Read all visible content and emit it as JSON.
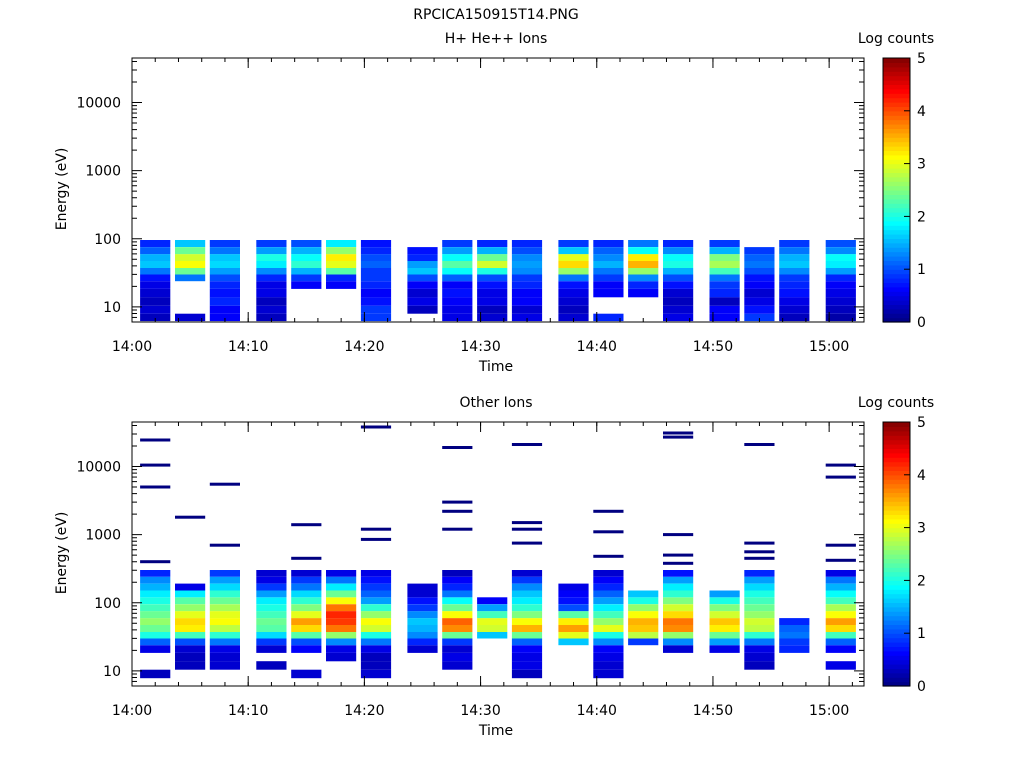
{
  "page": {
    "title": "RPCICA150915T14.PNG"
  },
  "colorbar_label": "Log counts",
  "colorbar_ticks": [
    "0",
    "1",
    "2",
    "3",
    "4",
    "5"
  ],
  "chart_data": [
    {
      "type": "heatmap",
      "title": "H+ He++ Ions",
      "xlabel": "Time",
      "ylabel": "Energy (eV)",
      "x_ticks": [
        "14:00",
        "14:10",
        "14:20",
        "14:30",
        "14:40",
        "14:50",
        "15:00"
      ],
      "y_ticks": [
        "10",
        "100",
        "1000",
        "10000"
      ],
      "y_scale": "log",
      "ylim": [
        6,
        45000
      ],
      "xlim": [
        "14:00",
        "15:03"
      ],
      "color_scale": {
        "label": "Log counts",
        "min": 0,
        "max": 5
      },
      "time_bins": [
        "14:02",
        "14:05",
        "14:08",
        "14:12",
        "14:15",
        "14:18",
        "14:21",
        "14:25",
        "14:28",
        "14:31",
        "14:34",
        "14:38",
        "14:41",
        "14:44",
        "14:47",
        "14:51",
        "14:54",
        "14:57",
        "15:01"
      ],
      "rows": [
        {
          "e": 7,
          "v": [
            0.3,
            0.4,
            0.6,
            0.3,
            -1,
            -1,
            0.9,
            -1,
            0.5,
            0.4,
            0.5,
            0.4,
            0.8,
            -1,
            0.5,
            0.6,
            0.9,
            0.3,
            0.2
          ]
        },
        {
          "e": 9,
          "v": [
            0.4,
            -1,
            0.6,
            0.4,
            -1,
            -1,
            0.9,
            0.3,
            0.5,
            0.3,
            0.4,
            0.3,
            -1,
            -1,
            0.4,
            0.6,
            0.7,
            0.4,
            0.3
          ]
        },
        {
          "e": 12,
          "v": [
            0.3,
            -1,
            0.8,
            0.3,
            -1,
            -1,
            0.7,
            0.5,
            0.6,
            0.5,
            0.6,
            0.4,
            -1,
            -1,
            0.3,
            0.3,
            0.5,
            0.5,
            0.4
          ]
        },
        {
          "e": 16,
          "v": [
            0.4,
            -1,
            0.7,
            0.5,
            -1,
            -1,
            0.6,
            0.4,
            0.7,
            0.5,
            0.6,
            0.5,
            0.6,
            0.6,
            0.4,
            0.8,
            0.4,
            0.7,
            0.5
          ]
        },
        {
          "e": 21,
          "v": [
            0.5,
            -1,
            0.8,
            0.5,
            0.6,
            0.6,
            0.8,
            0.6,
            0.6,
            0.7,
            0.8,
            0.7,
            0.6,
            0.8,
            0.7,
            0.9,
            0.6,
            0.8,
            0.6
          ]
        },
        {
          "e": 27,
          "v": [
            0.7,
            1.2,
            1.0,
            0.8,
            0.9,
            0.8,
            0.9,
            1.0,
            1.1,
            1.0,
            0.9,
            1.2,
            0.9,
            1.3,
            1.0,
            1.2,
            0.7,
            0.9,
            0.8
          ]
        },
        {
          "e": 33,
          "v": [
            1.2,
            2.4,
            1.4,
            1.3,
            1.5,
            2.3,
            0.9,
            1.6,
            1.9,
            2.0,
            1.3,
            2.6,
            1.2,
            2.6,
            1.5,
            2.2,
            1.0,
            1.3,
            1.4
          ]
        },
        {
          "e": 42,
          "v": [
            1.6,
            3.1,
            1.7,
            1.8,
            2.1,
            3.0,
            1.1,
            1.4,
            2.3,
            2.9,
            1.4,
            3.3,
            1.5,
            3.5,
            2.0,
            2.7,
            1.2,
            1.6,
            1.8
          ]
        },
        {
          "e": 53,
          "v": [
            1.5,
            2.9,
            1.6,
            2.0,
            1.9,
            3.2,
            1.0,
            0.8,
            1.9,
            2.4,
            1.3,
            3.0,
            1.3,
            3.2,
            1.9,
            2.5,
            1.1,
            1.5,
            1.9
          ]
        },
        {
          "e": 67,
          "v": [
            1.1,
            2.4,
            1.2,
            1.4,
            1.5,
            2.6,
            0.8,
            0.7,
            1.4,
            1.5,
            1.0,
            1.6,
            1.1,
            1.9,
            1.3,
            1.5,
            0.9,
            1.2,
            1.3
          ]
        },
        {
          "e": 85,
          "v": [
            0.8,
            1.6,
            0.9,
            0.9,
            1.0,
            1.8,
            0.7,
            -1,
            0.9,
            0.8,
            0.8,
            0.9,
            0.8,
            1.2,
            0.8,
            0.9,
            -1,
            0.9,
            1.0
          ]
        }
      ]
    },
    {
      "type": "heatmap",
      "title": "Other Ions",
      "xlabel": "Time",
      "ylabel": "Energy (eV)",
      "x_ticks": [
        "14:00",
        "14:10",
        "14:20",
        "14:30",
        "14:40",
        "14:50",
        "15:00"
      ],
      "y_ticks": [
        "10",
        "100",
        "1000",
        "10000"
      ],
      "y_scale": "log",
      "ylim": [
        6,
        45000
      ],
      "xlim": [
        "14:00",
        "15:03"
      ],
      "color_scale": {
        "label": "Log counts",
        "min": 0,
        "max": 5
      },
      "time_bins": [
        "14:02",
        "14:05",
        "14:08",
        "14:12",
        "14:15",
        "14:18",
        "14:21",
        "14:25",
        "14:28",
        "14:31",
        "14:34",
        "14:38",
        "14:41",
        "14:44",
        "14:47",
        "14:51",
        "14:54",
        "14:57",
        "15:01"
      ],
      "rows": [
        {
          "e": 9,
          "v": [
            0.3,
            -1,
            -1,
            -1,
            0.4,
            -1,
            0.4,
            -1,
            -1,
            -1,
            0.3,
            -1,
            0.4,
            -1,
            -1,
            -1,
            -1,
            -1,
            -1
          ]
        },
        {
          "e": 12,
          "v": [
            -1,
            0.3,
            0.4,
            0.3,
            -1,
            -1,
            0.3,
            -1,
            0.4,
            -1,
            0.5,
            -1,
            0.4,
            -1,
            -1,
            -1,
            0.3,
            -1,
            0.5
          ]
        },
        {
          "e": 16,
          "v": [
            -1,
            0.3,
            0.4,
            -1,
            -1,
            0.4,
            0.3,
            -1,
            0.5,
            -1,
            0.5,
            -1,
            0.5,
            -1,
            -1,
            -1,
            0.4,
            -1,
            -1
          ]
        },
        {
          "e": 21,
          "v": [
            0.5,
            0.4,
            0.5,
            0.4,
            0.6,
            0.5,
            0.5,
            0.4,
            0.4,
            -1,
            0.6,
            -1,
            0.6,
            -1,
            0.4,
            0.5,
            0.5,
            0.8,
            0.6
          ]
        },
        {
          "e": 27,
          "v": [
            1.1,
            1.0,
            1.2,
            0.9,
            1.0,
            1.3,
            1.2,
            0.8,
            0.9,
            -1,
            1.1,
            1.6,
            1.3,
            0.9,
            1.3,
            1.4,
            1.2,
            0.9,
            1.1
          ]
        },
        {
          "e": 33,
          "v": [
            2.0,
            2.2,
            2.1,
            1.7,
            2.3,
            2.6,
            2.0,
            1.3,
            2.4,
            1.6,
            2.4,
            3.0,
            2.0,
            2.8,
            2.6,
            2.4,
            2.1,
            1.2,
            2.2
          ]
        },
        {
          "e": 42,
          "v": [
            2.4,
            3.2,
            2.8,
            2.3,
            3.3,
            3.8,
            2.9,
            1.5,
            3.7,
            2.9,
            3.5,
            3.6,
            3.0,
            3.4,
            3.7,
            3.2,
            2.8,
            1.1,
            3.3
          ]
        },
        {
          "e": 53,
          "v": [
            2.6,
            3.3,
            3.1,
            2.4,
            3.6,
            4.1,
            3.1,
            1.6,
            3.9,
            3.0,
            3.1,
            3.2,
            2.6,
            3.5,
            3.8,
            3.4,
            2.9,
            0.8,
            3.6
          ]
        },
        {
          "e": 67,
          "v": [
            2.4,
            3.0,
            3.0,
            2.2,
            3.0,
            4.2,
            2.6,
            1.3,
            3.1,
            2.2,
            2.5,
            2.3,
            2.2,
            3.1,
            3.3,
            2.9,
            2.6,
            -1,
            3.1
          ]
        },
        {
          "e": 85,
          "v": [
            2.2,
            2.6,
            2.7,
            2.0,
            2.5,
            3.8,
            2.1,
            0.9,
            2.4,
            1.4,
            2.1,
            1.0,
            1.8,
            2.6,
            2.9,
            2.5,
            2.4,
            -1,
            2.7
          ]
        },
        {
          "e": 107,
          "v": [
            2.0,
            2.3,
            2.4,
            1.8,
            2.1,
            3.1,
            1.4,
            0.7,
            1.9,
            0.6,
            1.8,
            0.7,
            1.4,
            2.0,
            2.5,
            2.0,
            2.2,
            -1,
            2.2
          ]
        },
        {
          "e": 135,
          "v": [
            1.8,
            1.8,
            2.1,
            1.4,
            1.7,
            2.4,
            1.1,
            0.4,
            1.2,
            -1,
            1.6,
            0.6,
            1.1,
            1.6,
            2.1,
            1.4,
            2.0,
            -1,
            1.9
          ]
        },
        {
          "e": 170,
          "v": [
            1.5,
            0.5,
            1.7,
            0.9,
            1.2,
            1.8,
            0.9,
            0.4,
            0.8,
            -1,
            1.3,
            0.5,
            0.8,
            -1,
            1.8,
            -1,
            1.7,
            -1,
            1.5
          ]
        },
        {
          "e": 215,
          "v": [
            1.3,
            -1,
            1.4,
            0.5,
            0.9,
            1.2,
            0.7,
            -1,
            0.6,
            -1,
            0.9,
            -1,
            0.6,
            -1,
            1.4,
            -1,
            1.4,
            -1,
            1.2
          ]
        },
        {
          "e": 270,
          "v": [
            0.8,
            -1,
            0.9,
            0.4,
            0.4,
            0.5,
            0.5,
            -1,
            0.3,
            -1,
            0.4,
            -1,
            0.4,
            -1,
            0.7,
            -1,
            0.8,
            -1,
            0.5
          ]
        }
      ],
      "lines": [
        {
          "t": 0,
          "e": [
            400,
            5000,
            10500,
            24500
          ]
        },
        {
          "t": 1,
          "e": [
            1800
          ]
        },
        {
          "t": 2,
          "e": [
            700,
            5500
          ]
        },
        {
          "t": 3,
          "e": []
        },
        {
          "t": 4,
          "e": [
            450,
            1400
          ]
        },
        {
          "t": 5,
          "e": []
        },
        {
          "t": 6,
          "e": [
            850,
            1200,
            38000
          ]
        },
        {
          "t": 7,
          "e": []
        },
        {
          "t": 8,
          "e": [
            1200,
            2200,
            3000,
            19000
          ]
        },
        {
          "t": 9,
          "e": []
        },
        {
          "t": 10,
          "e": [
            750,
            1200,
            1500,
            21000
          ]
        },
        {
          "t": 11,
          "e": []
        },
        {
          "t": 12,
          "e": [
            480,
            1100,
            2200
          ]
        },
        {
          "t": 13,
          "e": []
        },
        {
          "t": 14,
          "e": [
            380,
            500,
            1000,
            27000,
            31000
          ]
        },
        {
          "t": 15,
          "e": []
        },
        {
          "t": 16,
          "e": [
            450,
            560,
            750,
            21000
          ]
        },
        {
          "t": 17,
          "e": []
        },
        {
          "t": 18,
          "e": [
            420,
            700,
            7000,
            10500
          ]
        }
      ]
    }
  ]
}
